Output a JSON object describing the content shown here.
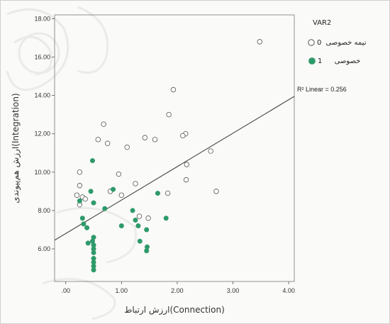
{
  "chart_data": {
    "type": "scatter",
    "xlabel": "ارزش ارتباط(Connection)",
    "ylabel": "ارزش هم‌پیوندی(Integration)",
    "xlim": [
      -0.2,
      4.1
    ],
    "ylim": [
      4.3,
      18.2
    ],
    "x_ticks": [
      0,
      1,
      2,
      3,
      4
    ],
    "x_tick_labels": [
      ".00",
      "1.00",
      "2.00",
      "3.00",
      "4.00"
    ],
    "y_ticks": [
      6,
      8,
      10,
      12,
      14,
      16,
      18
    ],
    "y_tick_labels": [
      "6.00",
      "8.00",
      "10.00",
      "12.00",
      "14.00",
      "16.00",
      "18.00"
    ],
    "grid": false,
    "legend": {
      "title": "VAR2",
      "placement": "right",
      "entries": [
        {
          "label": "نیمه خصوصی",
          "code": "0",
          "style": "open"
        },
        {
          "label": "خصوصی",
          "code": "1",
          "style": "filled"
        }
      ]
    },
    "fit_line": {
      "label": "R² Linear = 0.256",
      "x": [
        -0.2,
        4.1
      ],
      "y": [
        6.45,
        13.95
      ]
    },
    "colors": {
      "filled_point": "#2e9a6a",
      "open_point_stroke": "#555555",
      "fit_line": "#333333"
    },
    "series": [
      {
        "name": "0",
        "style": "open",
        "points": [
          [
            3.48,
            16.8
          ],
          [
            1.93,
            14.3
          ],
          [
            1.85,
            13.0
          ],
          [
            0.68,
            12.5
          ],
          [
            2.15,
            12.0
          ],
          [
            2.1,
            11.9
          ],
          [
            1.42,
            11.8
          ],
          [
            1.6,
            11.7
          ],
          [
            0.58,
            11.7
          ],
          [
            0.75,
            11.5
          ],
          [
            1.1,
            11.3
          ],
          [
            2.6,
            11.1
          ],
          [
            2.17,
            10.4
          ],
          [
            0.25,
            10.0
          ],
          [
            0.95,
            9.9
          ],
          [
            2.16,
            9.6
          ],
          [
            1.25,
            9.4
          ],
          [
            0.25,
            9.3
          ],
          [
            2.7,
            9.0
          ],
          [
            0.8,
            9.0
          ],
          [
            0.2,
            8.8
          ],
          [
            0.3,
            8.7
          ],
          [
            0.35,
            8.6
          ],
          [
            1.0,
            8.8
          ],
          [
            1.83,
            8.9
          ],
          [
            0.25,
            8.3
          ],
          [
            1.32,
            7.7
          ],
          [
            1.48,
            7.6
          ]
        ]
      },
      {
        "name": "1",
        "style": "filled",
        "points": [
          [
            0.48,
            10.6
          ],
          [
            0.45,
            9.0
          ],
          [
            0.85,
            9.1
          ],
          [
            1.65,
            8.9
          ],
          [
            0.25,
            8.5
          ],
          [
            0.5,
            8.4
          ],
          [
            0.3,
            7.6
          ],
          [
            0.32,
            7.3
          ],
          [
            0.7,
            8.1
          ],
          [
            1.2,
            8.0
          ],
          [
            1.8,
            7.6
          ],
          [
            1.25,
            7.5
          ],
          [
            1.0,
            7.2
          ],
          [
            0.38,
            7.1
          ],
          [
            1.45,
            7.0
          ],
          [
            0.5,
            6.6
          ],
          [
            1.33,
            6.4
          ],
          [
            0.48,
            6.4
          ],
          [
            0.5,
            6.2
          ],
          [
            0.5,
            6.0
          ],
          [
            1.46,
            6.1
          ],
          [
            1.45,
            5.9
          ],
          [
            0.5,
            5.8
          ],
          [
            0.5,
            5.5
          ],
          [
            0.5,
            5.3
          ],
          [
            0.5,
            5.1
          ],
          [
            0.5,
            4.9
          ],
          [
            0.4,
            6.3
          ],
          [
            1.3,
            7.2
          ]
        ]
      }
    ]
  }
}
